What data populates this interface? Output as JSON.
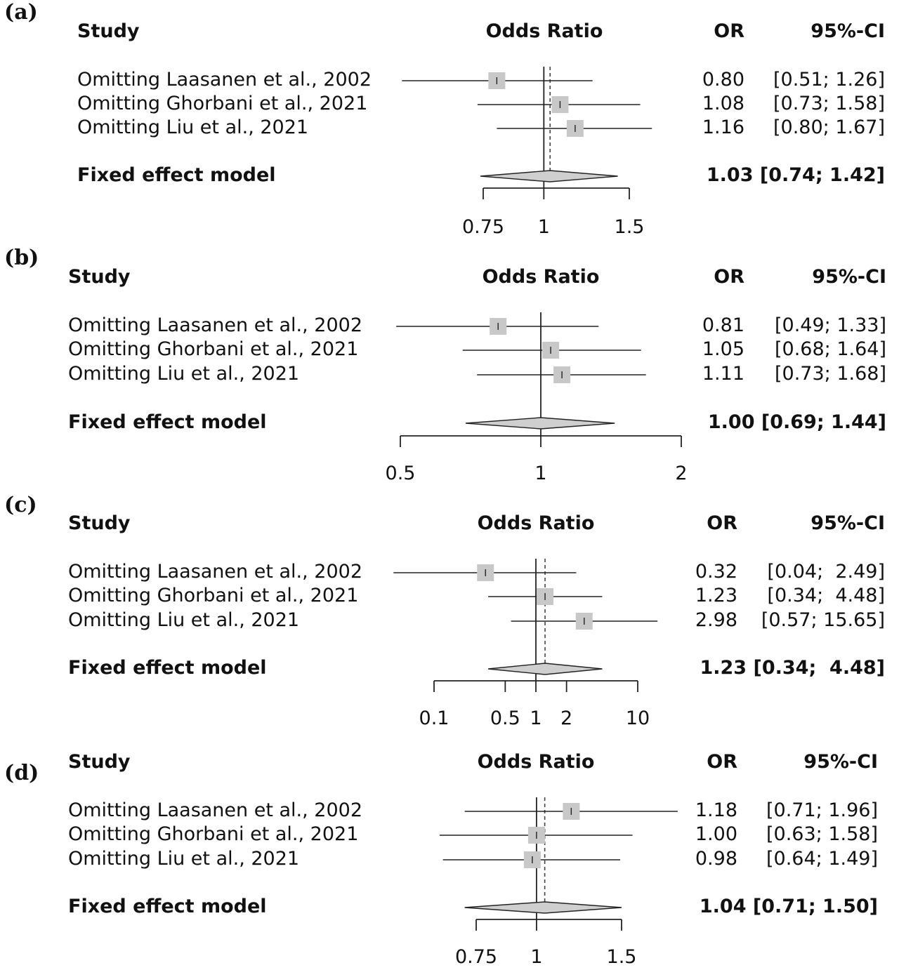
{
  "chart_data": [
    {
      "type": "forest",
      "label": "(a)",
      "headers": {
        "study": "Study",
        "effect": "Odds Ratio",
        "or": "OR",
        "ci": "95%-CI"
      },
      "rows": [
        {
          "study": "Omitting Laasanen et  al., 2002",
          "or": 0.8,
          "lower": 0.51,
          "upper": 1.26,
          "or_text": "0.80",
          "ci_text": "[0.51; 1.26]"
        },
        {
          "study": "Omitting Ghorbani et  al., 2021",
          "or": 1.08,
          "lower": 0.73,
          "upper": 1.58,
          "or_text": "1.08",
          "ci_text": "[0.73; 1.58]"
        },
        {
          "study": "Omitting Liu et al.,  2021",
          "or": 1.16,
          "lower": 0.8,
          "upper": 1.67,
          "or_text": "1.16",
          "ci_text": "[0.80; 1.67]"
        }
      ],
      "summary": {
        "label": "Fixed effect model",
        "or": 1.03,
        "lower": 0.74,
        "upper": 1.42,
        "text": "1.03 [0.74; 1.42]"
      },
      "axis": {
        "scale": "log",
        "ticks": [
          0.75,
          1,
          1.5
        ],
        "tick_labels": [
          "0.75",
          "1",
          "1.5"
        ]
      }
    },
    {
      "type": "forest",
      "label": "(b)",
      "headers": {
        "study": "Study",
        "effect": "Odds Ratio",
        "or": "OR",
        "ci": "95%-CI"
      },
      "rows": [
        {
          "study": "Omitting Laasanen et  al., 2002",
          "or": 0.81,
          "lower": 0.49,
          "upper": 1.33,
          "or_text": "0.81",
          "ci_text": "[0.49; 1.33]"
        },
        {
          "study": "Omitting Ghorbani et  al., 2021",
          "or": 1.05,
          "lower": 0.68,
          "upper": 1.64,
          "or_text": "1.05",
          "ci_text": "[0.68; 1.64]"
        },
        {
          "study": "Omitting Liu et al.,  2021",
          "or": 1.11,
          "lower": 0.73,
          "upper": 1.68,
          "or_text": "1.11",
          "ci_text": "[0.73; 1.68]"
        }
      ],
      "summary": {
        "label": "Fixed effect model",
        "or": 1.0,
        "lower": 0.69,
        "upper": 1.44,
        "text": "1.00 [0.69; 1.44]"
      },
      "axis": {
        "scale": "log",
        "ticks": [
          0.5,
          1,
          2
        ],
        "tick_labels": [
          "0.5",
          "1",
          "2"
        ]
      }
    },
    {
      "type": "forest",
      "label": "(c)",
      "headers": {
        "study": "Study",
        "effect": "Odds Ratio",
        "or": "OR",
        "ci": "95%-CI"
      },
      "rows": [
        {
          "study": "Omitting Laasanen et  al., 2002",
          "or": 0.32,
          "lower": 0.04,
          "upper": 2.49,
          "or_text": "0.32",
          "ci_text": "[0.04;  2.49]"
        },
        {
          "study": "Omitting Ghorbani et  al., 2021",
          "or": 1.23,
          "lower": 0.34,
          "upper": 4.48,
          "or_text": "1.23",
          "ci_text": "[0.34;  4.48]"
        },
        {
          "study": "Omitting Liu et al.,  2021",
          "or": 2.98,
          "lower": 0.57,
          "upper": 15.65,
          "or_text": "2.98",
          "ci_text": "[0.57; 15.65]"
        }
      ],
      "summary": {
        "label": "Fixed effect model",
        "or": 1.23,
        "lower": 0.34,
        "upper": 4.48,
        "text": "1.23 [0.34;  4.48]"
      },
      "axis": {
        "scale": "log",
        "ticks": [
          0.1,
          0.5,
          1,
          2,
          10
        ],
        "tick_labels": [
          "0.1",
          "0.5",
          "1",
          "2",
          "10"
        ]
      }
    },
    {
      "type": "forest",
      "label": "(d)",
      "headers": {
        "study": "Study",
        "effect": "Odds Ratio",
        "or": "OR",
        "ci": "95%-CI"
      },
      "rows": [
        {
          "study": "Omitting Laasanen et  al., 2002",
          "or": 1.18,
          "lower": 0.71,
          "upper": 1.96,
          "or_text": "1.18",
          "ci_text": "[0.71; 1.96]"
        },
        {
          "study": "Omitting Ghorbani et  al., 2021",
          "or": 1.0,
          "lower": 0.63,
          "upper": 1.58,
          "or_text": "1.00",
          "ci_text": "[0.63; 1.58]"
        },
        {
          "study": "Omitting Liu et al.,  2021",
          "or": 0.98,
          "lower": 0.64,
          "upper": 1.49,
          "or_text": "0.98",
          "ci_text": "[0.64; 1.49]"
        }
      ],
      "summary": {
        "label": "Fixed effect model",
        "or": 1.04,
        "lower": 0.71,
        "upper": 1.5,
        "text": "1.04 [0.71; 1.50]"
      },
      "axis": {
        "scale": "log",
        "ticks": [
          0.75,
          1,
          1.5
        ],
        "tick_labels": [
          "0.75",
          "1",
          "1.5"
        ]
      }
    }
  ],
  "colors": {
    "square": "#c8c8c8",
    "diamond": "#cfcfcf",
    "line": "#222222",
    "dashed": "#444444"
  }
}
